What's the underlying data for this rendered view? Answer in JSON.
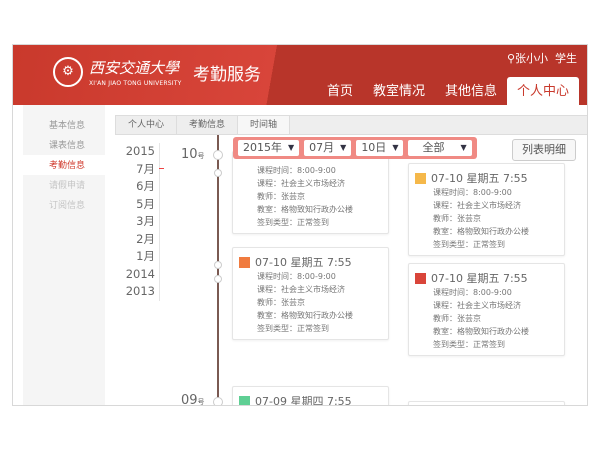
{
  "header": {
    "logo_mark": "西",
    "uni_name": "西安交通大學",
    "uni_en": "XI'AN JIAO TONG UNIVERSITY",
    "service": "考勤服务",
    "user_name": "张小小",
    "user_role": "学生",
    "brand_color": "#c9392c"
  },
  "nav": [
    {
      "label": "首页"
    },
    {
      "label": "教室情况"
    },
    {
      "label": "其他信息"
    },
    {
      "label": "个人中心",
      "active": true
    }
  ],
  "sidebar": [
    {
      "label": "基本信息"
    },
    {
      "label": "课表信息"
    },
    {
      "label": "考勤信息",
      "active": true
    },
    {
      "label": "请假申请"
    },
    {
      "label": "订阅信息"
    }
  ],
  "breadcrumb": [
    "个人中心",
    "考勤信息",
    "时间轴"
  ],
  "years": [
    "2015",
    "7月",
    "6月",
    "5月",
    "3月",
    "2月",
    "1月",
    "2014",
    "2013"
  ],
  "filter": {
    "year": "2015年",
    "month": "07月",
    "day": "10日",
    "type": "全部"
  },
  "list_button": "列表明细",
  "days": [
    {
      "num": "10",
      "suffix": "号"
    },
    {
      "num": "09",
      "suffix": "号"
    }
  ],
  "cards": [
    {
      "title": "07-10 星期五 7:55",
      "icon_color": "#f07b3f",
      "rows": [
        "课程时间：8:00-9:00",
        "课程：社会主义市场经济",
        "教师：张芸京",
        "教室：格物致知行政办公楼",
        "签到类型：正常签到"
      ]
    },
    {
      "title": "07-10 星期五 7:55",
      "icon_color": "#f5b84a",
      "rows": [
        "课程时间：8:00-9:00",
        "课程：社会主义市场经济",
        "教师：张芸京",
        "教室：格物致知行政办公楼",
        "签到类型：正常签到"
      ]
    },
    {
      "title": "07-10 星期五 7:55",
      "icon_color": "#f07b3f",
      "rows": [
        "课程时间：8:00-9:00",
        "课程：社会主义市场经济",
        "教师：张芸京",
        "教室：格物致知行政办公楼",
        "签到类型：正常签到"
      ]
    },
    {
      "title": "07-10 星期五 7:55",
      "icon_color": "#d9453a",
      "rows": [
        "课程时间：8:00-9:00",
        "课程：社会主义市场经济",
        "教师：张芸京",
        "教室：格物致知行政办公楼",
        "签到类型：正常签到"
      ]
    },
    {
      "title": "07-09 星期四 7:55",
      "icon_color": "#5fcf94",
      "rows": []
    }
  ]
}
